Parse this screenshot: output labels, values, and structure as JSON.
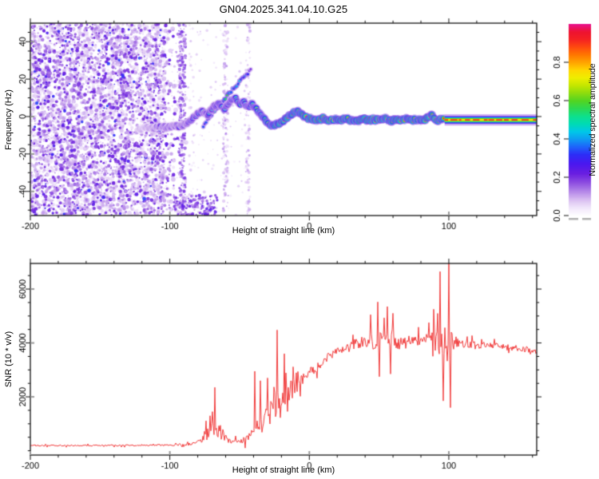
{
  "title": "GN04.2025.341.04.10.G25",
  "chart_data": [
    {
      "type": "heatmap",
      "name": "doppler-spectrogram",
      "xlabel": "Height of straight line (km)",
      "ylabel": "Frequency (Hz)",
      "xlim": [
        -200,
        163
      ],
      "ylim": [
        -52.9,
        49.9
      ],
      "xticks": [
        -200,
        -100,
        0,
        100
      ],
      "yticks": [
        40,
        20,
        0,
        -20,
        -40
      ],
      "x_minor_step": 20,
      "y_minor_step": 5,
      "colorbar": {
        "label": "Normalized spectral amplitude",
        "ticks": [
          "0.0",
          "0.2",
          "0.4",
          "0.6",
          "0.8"
        ],
        "tick_values": [
          0.0,
          0.2,
          0.4,
          0.6,
          0.8
        ],
        "vmin": 0.0,
        "vmax": 1.0
      },
      "colormap": [
        [
          0.0,
          "#ffffff"
        ],
        [
          0.04,
          "#f2e8fb"
        ],
        [
          0.08,
          "#dcc2f2"
        ],
        [
          0.13,
          "#b284e8"
        ],
        [
          0.18,
          "#8846e0"
        ],
        [
          0.22,
          "#6a1fe0"
        ],
        [
          0.27,
          "#4b17ef"
        ],
        [
          0.32,
          "#2d2df7"
        ],
        [
          0.36,
          "#1e64fa"
        ],
        [
          0.4,
          "#0f9bf2"
        ],
        [
          0.44,
          "#00c8e8"
        ],
        [
          0.48,
          "#00dbb4"
        ],
        [
          0.52,
          "#0ee08c"
        ],
        [
          0.56,
          "#2cd952"
        ],
        [
          0.6,
          "#52d422"
        ],
        [
          0.64,
          "#8cdc0f"
        ],
        [
          0.68,
          "#c3e600"
        ],
        [
          0.72,
          "#eeee00"
        ],
        [
          0.76,
          "#ffd700"
        ],
        [
          0.8,
          "#ffa500"
        ],
        [
          0.84,
          "#ff7800"
        ],
        [
          0.88,
          "#ff4b0f"
        ],
        [
          0.92,
          "#f52222"
        ],
        [
          0.96,
          "#ee1330"
        ],
        [
          1.0,
          "#e8118c"
        ]
      ],
      "noise_region": {
        "km_range": [
          -200,
          -86
        ],
        "fade_start_km": -104,
        "wash_dots": 3200,
        "dark_dots": 2300
      },
      "noise_streaks": [
        {
          "km": -91,
          "halfwidth_km": 2.5,
          "n": 260,
          "amp": 0.16
        },
        {
          "km": -60,
          "halfwidth_km": 1.8,
          "n": 130,
          "amp": 0.1
        },
        {
          "km": -44,
          "halfwidth_km": 1.5,
          "n": 90,
          "amp": 0.09
        }
      ],
      "bottom_cluster": {
        "km_range": [
          -97,
          -66
        ],
        "freq_range": [
          -53,
          -42
        ],
        "n": 160,
        "amp_max": 0.26
      },
      "sparse_zone": {
        "km_range": [
          -86,
          -45
        ],
        "n": 220
      },
      "branch": [
        [
          -76,
          -5,
          0.28
        ],
        [
          -68,
          3,
          0.38
        ],
        [
          -60,
          10,
          0.45
        ],
        [
          -53,
          16,
          0.4
        ],
        [
          -47,
          21,
          0.33
        ],
        [
          -42,
          25,
          0.25
        ]
      ],
      "trace": [
        [
          -122,
          -7.0,
          0.22
        ],
        [
          -117,
          -5.5,
          0.26
        ],
        [
          -112,
          -6.5,
          0.3
        ],
        [
          -107,
          -5.0,
          0.33
        ],
        [
          -102,
          -6.0,
          0.35
        ],
        [
          -97,
          -4.5,
          0.38
        ],
        [
          -93,
          -5.5,
          0.4
        ],
        [
          -89,
          -4.0,
          0.42
        ],
        [
          -85,
          -2.0,
          0.45
        ],
        [
          -81,
          1.0,
          0.42
        ],
        [
          -77,
          3.0,
          0.48
        ],
        [
          -73,
          1.0,
          0.45
        ],
        [
          -69,
          5.0,
          0.52
        ],
        [
          -65,
          7.0,
          0.48
        ],
        [
          -61,
          4.0,
          0.52
        ],
        [
          -57,
          8.0,
          0.5
        ],
        [
          -53,
          10.0,
          0.52
        ],
        [
          -50,
          6.0,
          0.55
        ],
        [
          -47,
          8.0,
          0.52
        ],
        [
          -44,
          5.0,
          0.58
        ],
        [
          -41,
          7.0,
          0.55
        ],
        [
          -38,
          4.0,
          0.6
        ],
        [
          -35,
          1.0,
          0.62
        ],
        [
          -32,
          -1.5,
          0.68
        ],
        [
          -29,
          -4.0,
          0.72
        ],
        [
          -26,
          -5.0,
          0.78
        ],
        [
          -23,
          -4.0,
          0.82
        ],
        [
          -20,
          -3.0,
          0.85
        ],
        [
          -17,
          -1.0,
          0.8
        ],
        [
          -14,
          0.5,
          0.88
        ],
        [
          -11,
          2.0,
          0.85
        ],
        [
          -8,
          2.5,
          0.9
        ],
        [
          -5,
          1.0,
          0.88
        ],
        [
          -2,
          -0.5,
          0.92
        ],
        [
          2,
          -1.5,
          0.9
        ],
        [
          6,
          -2.0,
          0.88
        ],
        [
          10,
          -1.0,
          0.92
        ],
        [
          14,
          -2.5,
          0.9
        ],
        [
          18,
          -1.5,
          0.88
        ],
        [
          22,
          -2.0,
          0.92
        ],
        [
          26,
          -1.0,
          0.9
        ],
        [
          30,
          -2.0,
          0.88
        ],
        [
          34,
          -2.5,
          0.92
        ],
        [
          38,
          -1.0,
          0.9
        ],
        [
          42,
          -2.0,
          0.92
        ],
        [
          46,
          -1.5,
          0.88
        ],
        [
          50,
          -2.0,
          0.92
        ],
        [
          54,
          -1.0,
          0.9
        ],
        [
          58,
          -2.5,
          0.88
        ],
        [
          62,
          -1.5,
          0.92
        ],
        [
          66,
          -2.0,
          0.9
        ],
        [
          70,
          -1.0,
          0.88
        ],
        [
          74,
          -2.0,
          0.92
        ],
        [
          78,
          -1.5,
          0.9
        ],
        [
          82,
          -2.0,
          0.88
        ],
        [
          85,
          -0.5,
          0.9
        ],
        [
          88,
          1.0,
          0.88
        ],
        [
          91,
          -2.5,
          0.9
        ],
        [
          94,
          -1.5,
          0.85
        ],
        [
          97,
          -1.8,
          0.78
        ]
      ],
      "tail": {
        "start_km": 97,
        "end_km": 163,
        "freq": -1.8,
        "core_amp": 0.75
      }
    },
    {
      "type": "line",
      "name": "snr-profile",
      "xlabel": "Height of straight line (km)",
      "ylabel": "SNR (10 * v/v)",
      "xlim": [
        -200,
        163
      ],
      "ylim": [
        -160,
        6950
      ],
      "xticks": [
        -200,
        -100,
        0,
        100
      ],
      "yticks": [
        2000,
        4000,
        6000
      ],
      "x_minor_step": 20,
      "y_minor_step": 500,
      "line_color": "#f03a3a",
      "keypoints": [
        [
          -200,
          190,
          70
        ],
        [
          -160,
          195,
          70
        ],
        [
          -130,
          200,
          75
        ],
        [
          -110,
          205,
          80
        ],
        [
          -95,
          215,
          90
        ],
        [
          -88,
          230,
          110
        ],
        [
          -83,
          260,
          160
        ],
        [
          -79,
          330,
          260
        ],
        [
          -75,
          520,
          450
        ],
        [
          -71,
          750,
          850
        ],
        [
          -68,
          850,
          1000
        ],
        [
          -65,
          800,
          950
        ],
        [
          -62,
          600,
          650
        ],
        [
          -59,
          420,
          380
        ],
        [
          -56,
          340,
          240
        ],
        [
          -52,
          330,
          220
        ],
        [
          -48,
          380,
          280
        ],
        [
          -45,
          450,
          350
        ],
        [
          -42,
          550,
          500
        ],
        [
          -39,
          750,
          900
        ],
        [
          -36,
          900,
          1000
        ],
        [
          -33,
          1100,
          1100
        ],
        [
          -30,
          1300,
          1200
        ],
        [
          -27,
          1500,
          1400
        ],
        [
          -24,
          1700,
          1800
        ],
        [
          -21,
          1850,
          1500
        ],
        [
          -18,
          2000,
          1300
        ],
        [
          -15,
          2150,
          1200
        ],
        [
          -12,
          2300,
          1000
        ],
        [
          -9,
          2450,
          850
        ],
        [
          -6,
          2600,
          750
        ],
        [
          -3,
          2750,
          650
        ],
        [
          0,
          2900,
          600
        ],
        [
          4,
          3080,
          520
        ],
        [
          8,
          3250,
          500
        ],
        [
          12,
          3420,
          480
        ],
        [
          16,
          3580,
          450
        ],
        [
          20,
          3700,
          420
        ],
        [
          24,
          3800,
          430
        ],
        [
          28,
          3880,
          460
        ],
        [
          32,
          3950,
          500
        ],
        [
          36,
          4000,
          550
        ],
        [
          40,
          4030,
          650
        ],
        [
          44,
          4050,
          800
        ],
        [
          48,
          4080,
          1100
        ],
        [
          52,
          4050,
          900
        ],
        [
          56,
          4080,
          1100
        ],
        [
          60,
          4050,
          850
        ],
        [
          64,
          4000,
          700
        ],
        [
          68,
          4020,
          750
        ],
        [
          72,
          4060,
          700
        ],
        [
          76,
          4100,
          650
        ],
        [
          80,
          4130,
          620
        ],
        [
          84,
          4100,
          700
        ],
        [
          88,
          4130,
          900
        ],
        [
          92,
          4150,
          1400
        ],
        [
          96,
          4100,
          2200
        ],
        [
          100,
          4080,
          2400
        ],
        [
          104,
          4020,
          800
        ],
        [
          108,
          3980,
          500
        ],
        [
          113,
          3950,
          420
        ],
        [
          120,
          3920,
          380
        ],
        [
          128,
          3890,
          360
        ],
        [
          136,
          3860,
          360
        ],
        [
          144,
          3820,
          350
        ],
        [
          152,
          3780,
          350
        ],
        [
          158,
          3740,
          340
        ],
        [
          163,
          3720,
          340
        ]
      ],
      "spikes_up": [
        [
          -68,
          2350
        ],
        [
          -39,
          2950
        ],
        [
          -35,
          2600
        ],
        [
          -30,
          2700
        ],
        [
          -23,
          4480
        ],
        [
          -18,
          3600
        ],
        [
          44,
          5050
        ],
        [
          49,
          5520
        ],
        [
          56,
          5350
        ],
        [
          60,
          5100
        ],
        [
          89,
          5250
        ],
        [
          94,
          6650
        ],
        [
          100,
          6980
        ]
      ],
      "spikes_down": [
        [
          50,
          2750
        ],
        [
          58,
          2850
        ],
        [
          96,
          1850
        ],
        [
          101,
          1600
        ]
      ]
    }
  ]
}
